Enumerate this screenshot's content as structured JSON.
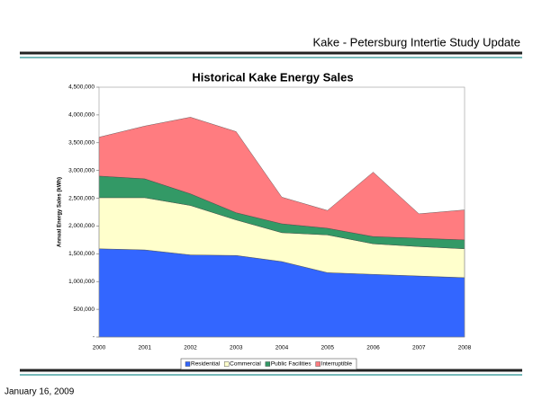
{
  "header": {
    "title": "Kake - Petersburg Intertie Study Update"
  },
  "footer": {
    "date": "January 16, 2009"
  },
  "chart_data": {
    "type": "stacked_area",
    "title": "Historical Kake Energy Sales",
    "y_label": "Annual Energy Sales (kWh)",
    "categories": [
      "2000",
      "2001",
      "2002",
      "2003",
      "2004",
      "2005",
      "2006",
      "2007",
      "2008"
    ],
    "series": [
      {
        "name": "Residential",
        "color": "#3366ff",
        "values": [
          1590000,
          1570000,
          1480000,
          1470000,
          1360000,
          1160000,
          1130000,
          1100000,
          1070000
        ]
      },
      {
        "name": "Commercial",
        "color": "#ffffcc",
        "values": [
          920000,
          940000,
          890000,
          640000,
          520000,
          680000,
          550000,
          530000,
          520000
        ]
      },
      {
        "name": "Public Facilities",
        "color": "#339966",
        "values": [
          390000,
          340000,
          210000,
          130000,
          160000,
          120000,
          130000,
          150000,
          160000
        ]
      },
      {
        "name": "Interruptible",
        "color": "#ff7c80",
        "values": [
          700000,
          950000,
          1380000,
          1460000,
          480000,
          320000,
          1160000,
          440000,
          540000
        ]
      }
    ],
    "ylim": [
      0,
      4500000
    ],
    "yticks": [
      {
        "value": 0,
        "label": "-"
      },
      {
        "value": 500000,
        "label": "500,000"
      },
      {
        "value": 1000000,
        "label": "1,000,000"
      },
      {
        "value": 1500000,
        "label": "1,500,000"
      },
      {
        "value": 2000000,
        "label": "2,000,000"
      },
      {
        "value": 2500000,
        "label": "2,500,000"
      },
      {
        "value": 3000000,
        "label": "3,000,000"
      },
      {
        "value": 3500000,
        "label": "3,500,000"
      },
      {
        "value": 4000000,
        "label": "4,000,000"
      },
      {
        "value": 4500000,
        "label": "4,500,000"
      }
    ],
    "legend": "bottom"
  }
}
